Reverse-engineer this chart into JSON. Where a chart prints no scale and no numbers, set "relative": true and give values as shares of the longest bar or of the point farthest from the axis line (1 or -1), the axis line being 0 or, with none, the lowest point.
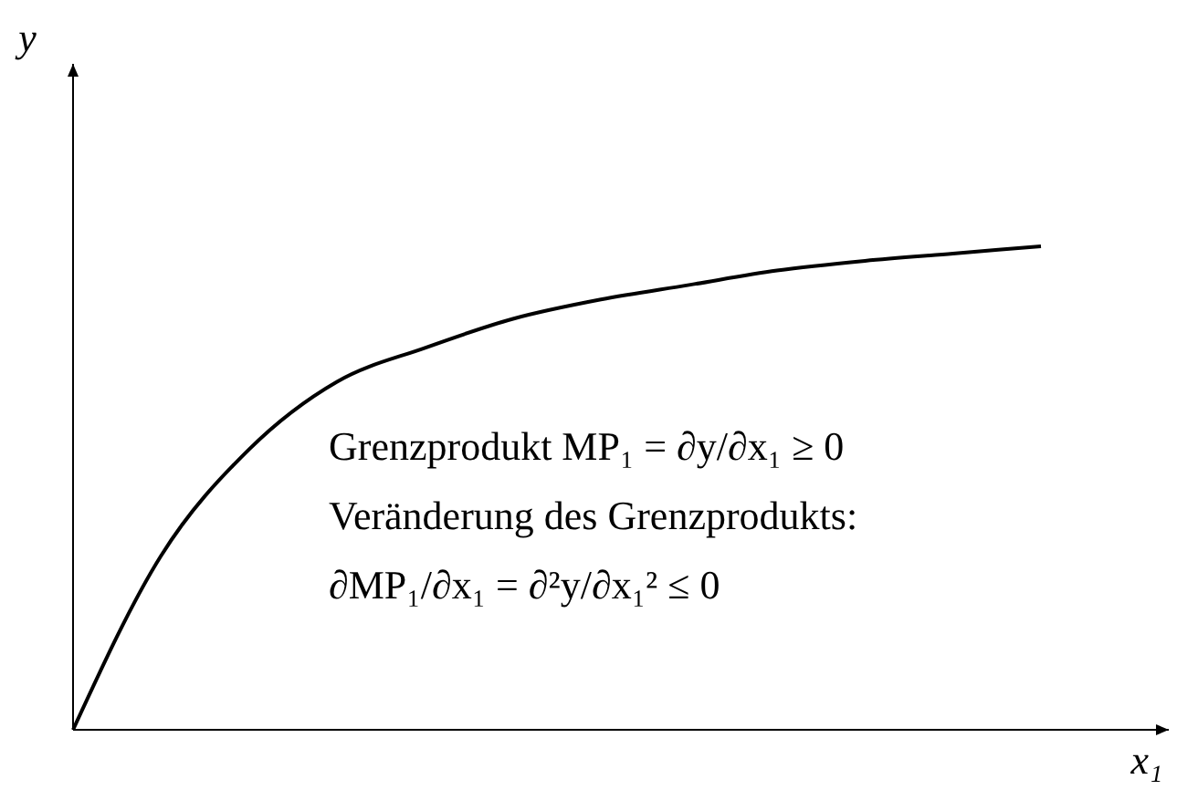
{
  "chart_data": {
    "type": "line",
    "relative": true,
    "xlabel": "x₁",
    "ylabel": "y",
    "categories": [
      null,
      null,
      null,
      null,
      null,
      null,
      null,
      null,
      null,
      null,
      null,
      null
    ],
    "series": [
      {
        "color": "#000000",
        "values": [
          0,
          0.36,
          0.58,
          0.72,
          0.79,
          0.85,
          0.89,
          0.92,
          0.95,
          0.97,
          0.985,
          1
        ]
      }
    ],
    "annotations": [
      "Grenzprodukt MP₁ = ∂y/∂x₁ ≥ 0",
      "Veränderung des Grenzprodukts:",
      "∂MP₁/∂x₁ = ∂²y/∂x₁² ≤ 0"
    ]
  }
}
